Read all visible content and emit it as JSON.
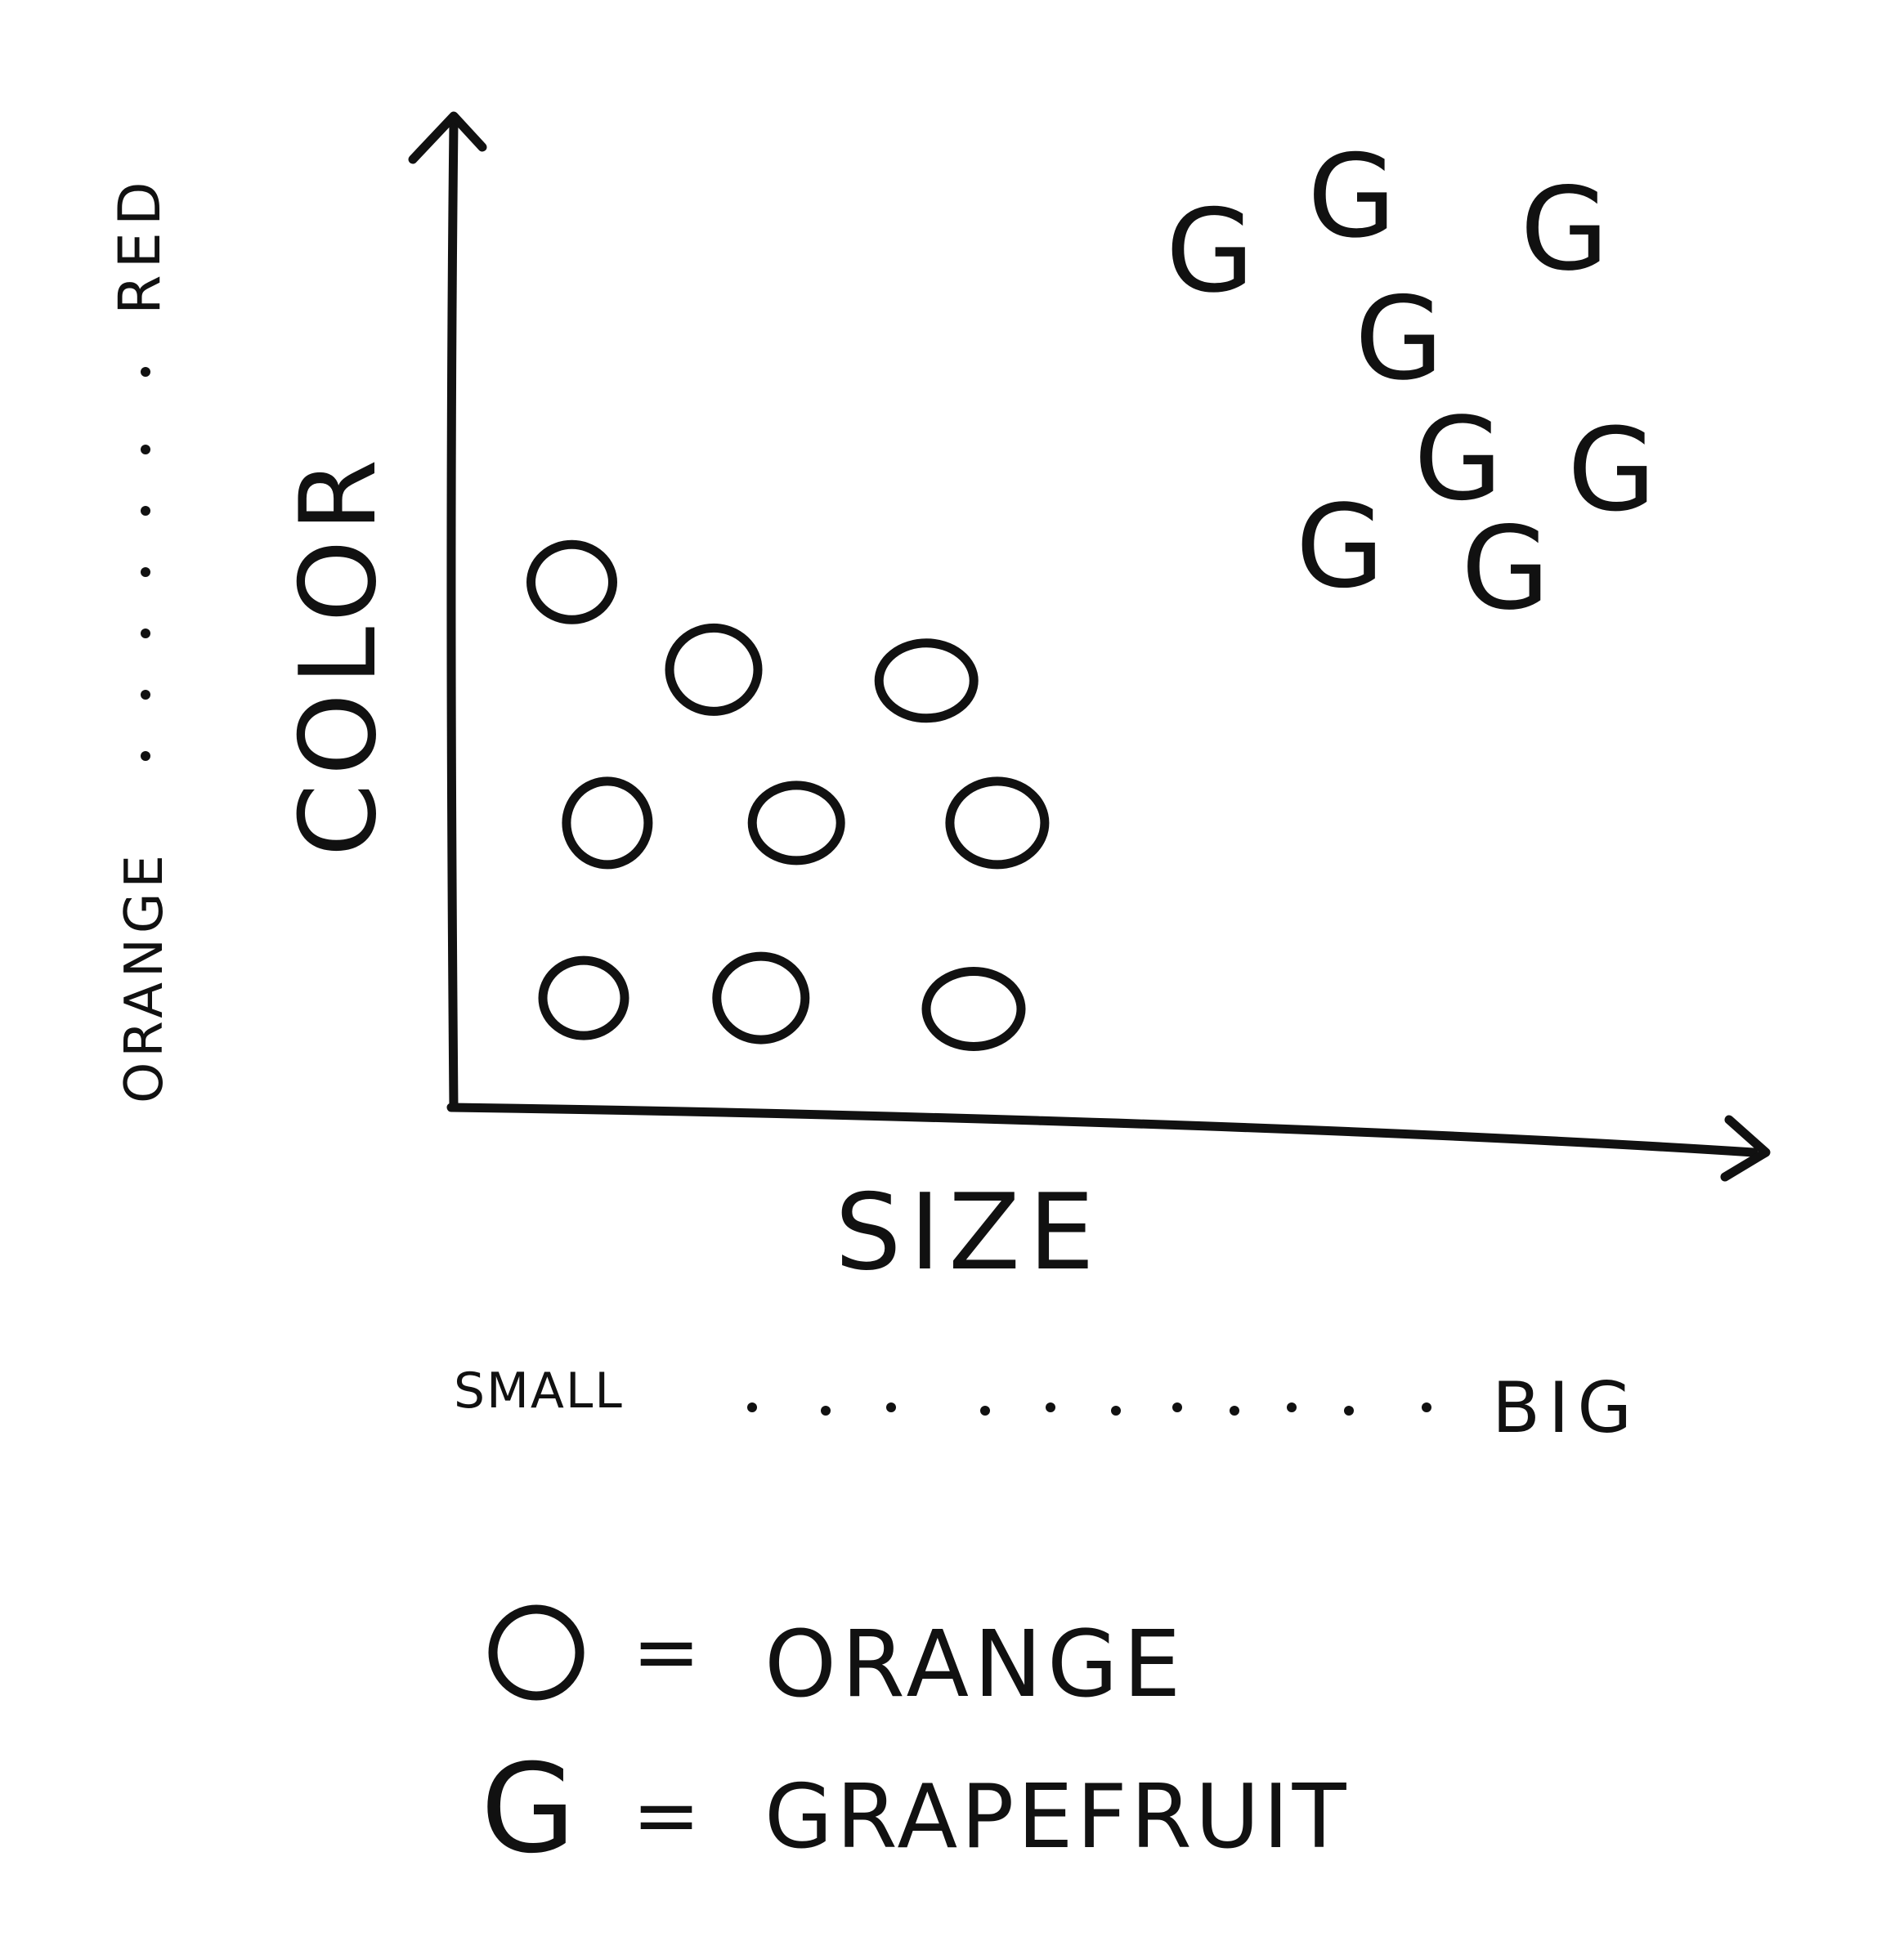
{
  "chart_data": {
    "type": "scatter",
    "xlabel": "SIZE",
    "ylabel": "COLOR",
    "x_scale": {
      "low": "SMALL",
      "high": "BIG"
    },
    "y_scale": {
      "low": "ORANGE",
      "high": "RED"
    },
    "legend_placement": "bottom",
    "series": [
      {
        "name": "ORANGE",
        "marker": "O",
        "points": [
          {
            "x": 1.0,
            "y": 4.8
          },
          {
            "x": 2.2,
            "y": 4.0
          },
          {
            "x": 4.0,
            "y": 3.9
          },
          {
            "x": 1.3,
            "y": 2.6
          },
          {
            "x": 2.9,
            "y": 2.6
          },
          {
            "x": 4.6,
            "y": 2.6
          },
          {
            "x": 1.1,
            "y": 1.0
          },
          {
            "x": 2.6,
            "y": 1.0
          },
          {
            "x": 4.4,
            "y": 0.9
          }
        ]
      },
      {
        "name": "GRAPEFRUIT",
        "marker": "G",
        "points": [
          {
            "x": 6.4,
            "y": 7.8
          },
          {
            "x": 7.6,
            "y": 8.3
          },
          {
            "x": 9.4,
            "y": 8.0
          },
          {
            "x": 8.0,
            "y": 7.0
          },
          {
            "x": 8.5,
            "y": 5.9
          },
          {
            "x": 9.8,
            "y": 5.8
          },
          {
            "x": 7.5,
            "y": 5.1
          },
          {
            "x": 8.9,
            "y": 4.9
          }
        ]
      }
    ],
    "xlim": [
      0,
      11
    ],
    "ylim": [
      0,
      9
    ],
    "grid": false
  },
  "legend": [
    {
      "symbol": "O",
      "equals": "=",
      "label": "ORANGE"
    },
    {
      "symbol": "G",
      "equals": "=",
      "label": "GRAPEFRUIT"
    }
  ]
}
